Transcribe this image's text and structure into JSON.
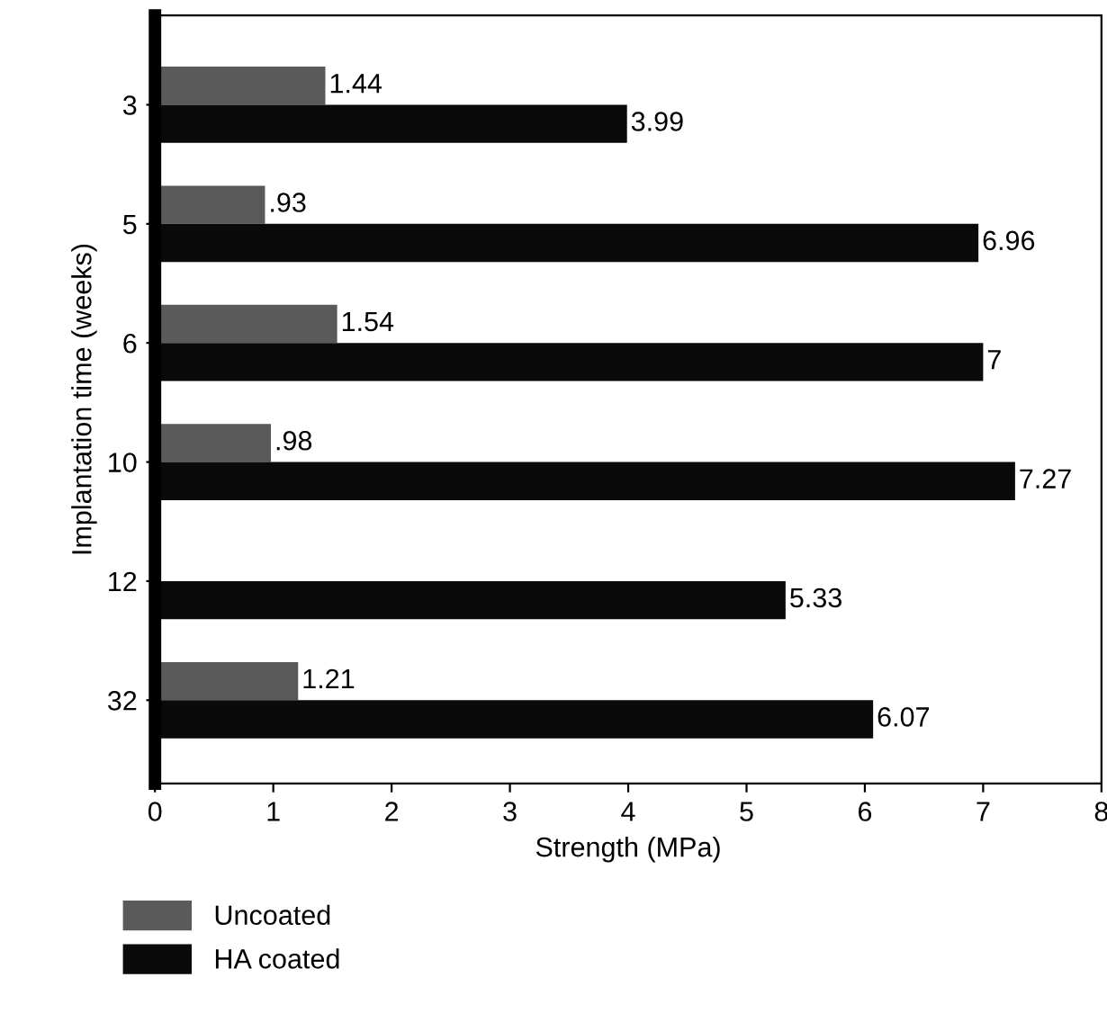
{
  "chart_data": {
    "type": "bar",
    "orientation": "horizontal",
    "xlabel": "Strength (MPa)",
    "ylabel": "Implantation time (weeks)",
    "categories": [
      "3",
      "5",
      "6",
      "10",
      "12",
      "32"
    ],
    "series": [
      {
        "name": "Uncoated",
        "color": "#5a5a5a",
        "values": [
          1.44,
          0.93,
          1.54,
          0.98,
          null,
          1.21
        ],
        "value_labels": [
          "1.44",
          ".93",
          "1.54",
          ".98",
          null,
          "1.21"
        ]
      },
      {
        "name": "HA coated",
        "color": "#0a0a0a",
        "values": [
          3.99,
          6.96,
          7,
          7.27,
          5.33,
          6.07
        ],
        "value_labels": [
          "3.99",
          "6.96",
          "7",
          "7.27",
          "5.33",
          "6.07"
        ]
      }
    ],
    "xlim": [
      0,
      8
    ],
    "xticks": [
      0,
      1,
      2,
      3,
      4,
      5,
      6,
      7,
      8
    ],
    "grid": false,
    "legend": "bottom"
  }
}
